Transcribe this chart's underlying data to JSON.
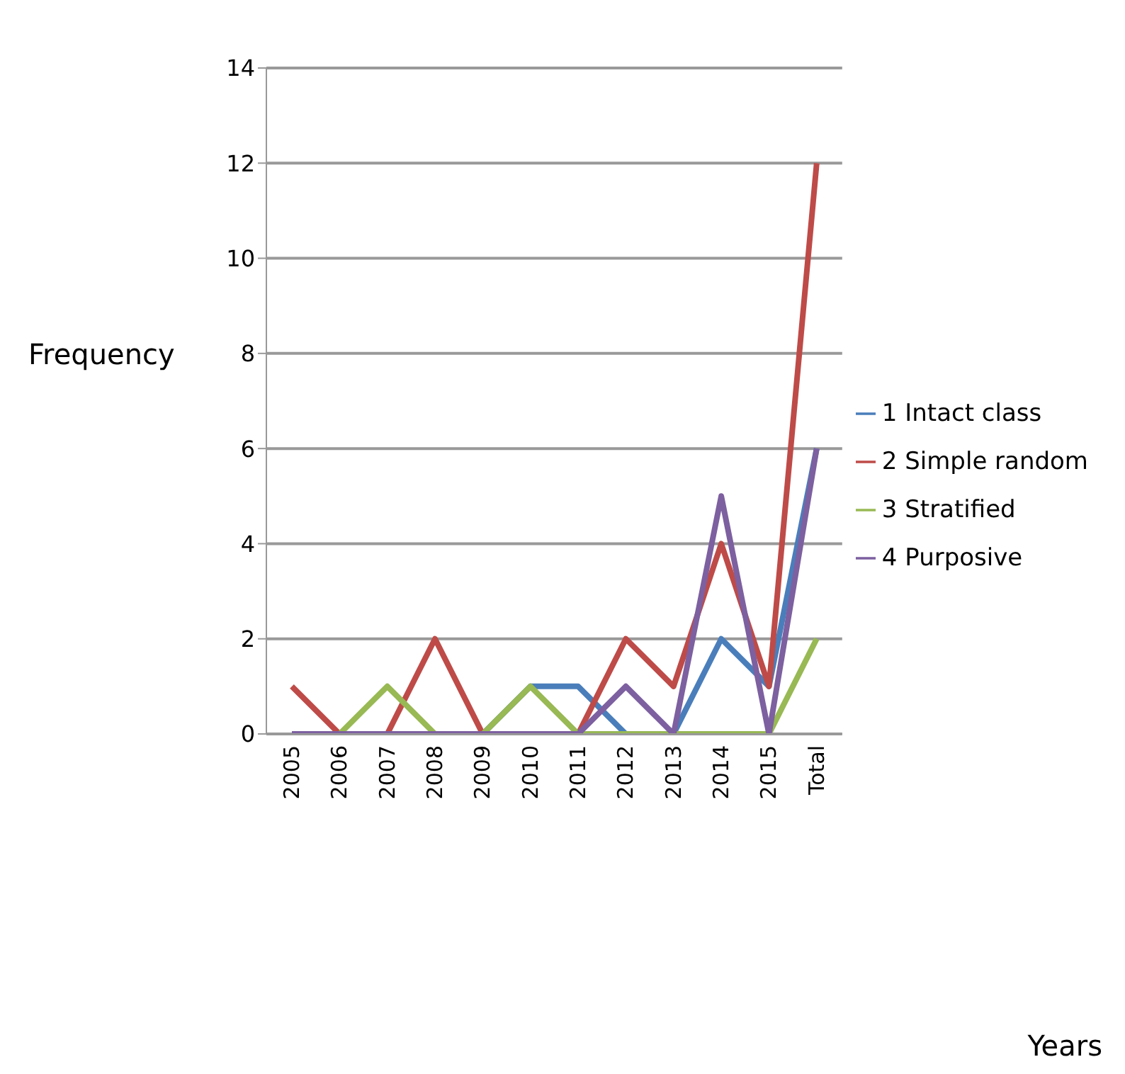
{
  "chart_data": {
    "type": "line",
    "annotations": [
      "Years"
    ],
    "ylabel": "Frequency",
    "categories": [
      "2005",
      "2006",
      "2007",
      "2008",
      "2009",
      "2010",
      "2011",
      "2012",
      "2013",
      "2014",
      "2015",
      "Total"
    ],
    "series": [
      {
        "name": "1 Intact class",
        "color": "#4a7ebb",
        "values": [
          null,
          null,
          null,
          null,
          0,
          1,
          1,
          0,
          0,
          2,
          1,
          6
        ]
      },
      {
        "name": "2 Simple random",
        "color": "#be4b48",
        "values": [
          1,
          0,
          0,
          2,
          0,
          0,
          0,
          2,
          1,
          4,
          1,
          12
        ]
      },
      {
        "name": "3 Stratified",
        "color": "#98b954",
        "values": [
          0,
          0,
          1,
          0,
          0,
          1,
          0,
          0,
          0,
          0,
          0,
          2
        ]
      },
      {
        "name": "4 Purposive",
        "color": "#7d60a0",
        "values": [
          0,
          0,
          0,
          0,
          0,
          0,
          0,
          1,
          0,
          5,
          0,
          6
        ]
      }
    ],
    "ylim": [
      0,
      14
    ],
    "yticks": [
      0,
      2,
      4,
      6,
      8,
      10,
      12,
      14
    ],
    "grid": "y",
    "legend": "right",
    "marker": "none",
    "line_style": "solid"
  }
}
